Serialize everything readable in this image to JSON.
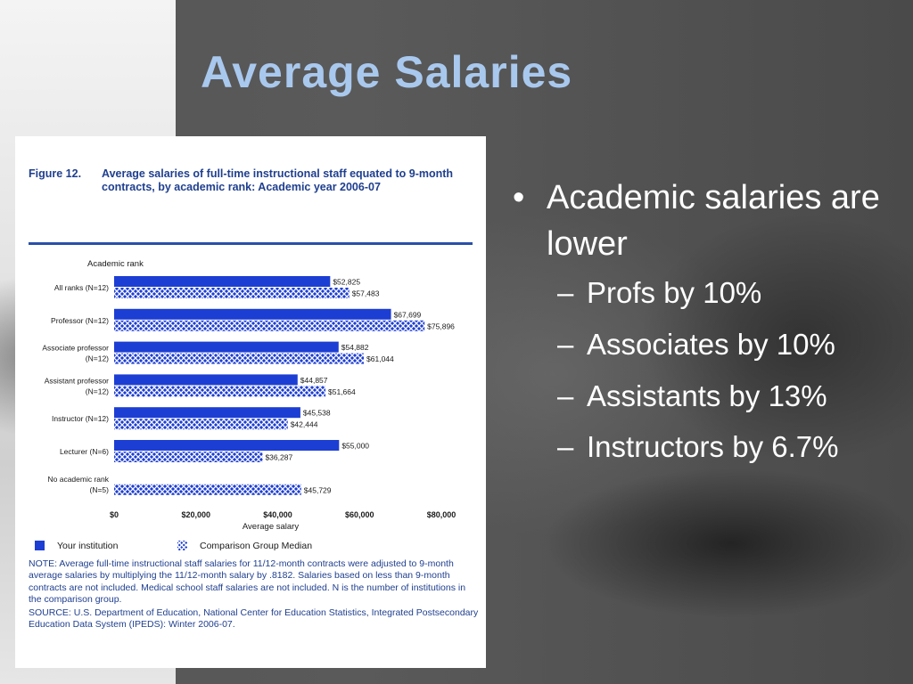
{
  "slide": {
    "title": "Average Salaries",
    "bullets": {
      "main": "Academic salaries are lower",
      "subs": [
        "Profs by 10%",
        "Associates by 10%",
        "Assistants by 13%",
        "Instructors by 6.7%"
      ]
    }
  },
  "figure": {
    "number": "Figure 12.",
    "caption": "Average salaries of full-time instructional staff equated to 9-month contracts, by academic rank: Academic year 2006-07",
    "legend": {
      "solid": "Your institution",
      "hatched": "Comparison Group Median"
    },
    "note": "NOTE: Average full-time instructional staff salaries for 11/12-month contracts were adjusted to 9-month average salaries by multiplying the 11/12-month salary by .8182. Salaries based on less than 9-month contracts are not included. Medical school staff salaries are not included. N is the number of institutions in the comparison group.",
    "source": "SOURCE: U.S. Department of Education, National Center for Education Statistics, Integrated Postsecondary Education Data System (IPEDS): Winter 2006-07."
  },
  "colors": {
    "bar": "#1d3ed3",
    "title": "#a9c8ee",
    "caption": "#1f3f8f"
  },
  "chart_data": {
    "type": "bar",
    "orientation": "horizontal",
    "categories": [
      [
        "All ranks (N=12)"
      ],
      [
        "Professor (N=12)"
      ],
      [
        "Associate professor",
        "(N=12)"
      ],
      [
        "Assistant professor",
        "(N=12)"
      ],
      [
        "Instructor (N=12)"
      ],
      [
        "Lecturer (N=6)"
      ],
      [
        "No academic rank",
        "(N=5)"
      ]
    ],
    "series": [
      {
        "name": "Your institution",
        "style": "solid",
        "values": [
          52825,
          67699,
          54882,
          44857,
          45538,
          55000,
          null
        ]
      },
      {
        "name": "Comparison Group Median",
        "style": "hatched",
        "values": [
          57483,
          75896,
          61044,
          51664,
          42444,
          36287,
          45729
        ]
      }
    ],
    "value_labels": [
      [
        "$52,825",
        "$67,699",
        "$54,882",
        "$44,857",
        "$45,538",
        "$55,000",
        null
      ],
      [
        "$57,483",
        "$75,896",
        "$61,044",
        "$51,664",
        "$42,444",
        "$36,287",
        "$45,729"
      ]
    ],
    "xlabel": "Average salary",
    "ylabel": "Academic rank",
    "xlim": [
      0,
      80000
    ],
    "xticks": [
      0,
      20000,
      40000,
      60000,
      80000
    ],
    "xtick_labels": [
      "$0",
      "$20,000",
      "$40,000",
      "$60,000",
      "$80,000"
    ],
    "legend": "bottom-left",
    "grid": false
  }
}
